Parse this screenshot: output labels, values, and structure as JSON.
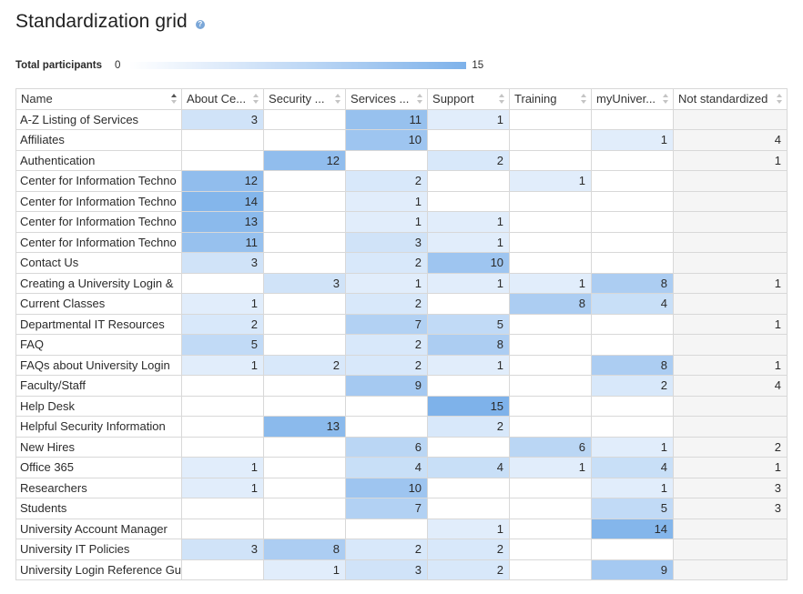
{
  "title": "Standardization grid",
  "help_icon_glyph": "?",
  "legend": {
    "label": "Total participants",
    "min": "0",
    "max": "15"
  },
  "colors": {
    "heat_low": "#ffffff",
    "heat_high": "#7eb2ea",
    "not_standardized_bg": "#f5f5f5"
  },
  "columns": [
    {
      "label": "Name",
      "full": "Name"
    },
    {
      "label": "About Ce...",
      "full": "About Center"
    },
    {
      "label": "Security ...",
      "full": "Security"
    },
    {
      "label": "Services ...",
      "full": "Services"
    },
    {
      "label": "Support",
      "full": "Support"
    },
    {
      "label": "Training",
      "full": "Training"
    },
    {
      "label": "myUniver...",
      "full": "myUniversity"
    },
    {
      "label": "Not standardized",
      "full": "Not standardized"
    }
  ],
  "rows": [
    {
      "name": "A-Z Listing of Services",
      "values": [
        3,
        null,
        11,
        1,
        null,
        null,
        null
      ]
    },
    {
      "name": "Affiliates",
      "values": [
        null,
        null,
        10,
        null,
        null,
        1,
        4
      ]
    },
    {
      "name": "Authentication",
      "values": [
        null,
        12,
        null,
        2,
        null,
        null,
        1
      ]
    },
    {
      "name": "Center for Information Techno",
      "values": [
        12,
        null,
        2,
        null,
        1,
        null,
        null
      ]
    },
    {
      "name": "Center for Information Techno",
      "values": [
        14,
        null,
        1,
        null,
        null,
        null,
        null
      ]
    },
    {
      "name": "Center for Information Techno",
      "values": [
        13,
        null,
        1,
        1,
        null,
        null,
        null
      ]
    },
    {
      "name": "Center for Information Techno",
      "values": [
        11,
        null,
        3,
        1,
        null,
        null,
        null
      ]
    },
    {
      "name": "Contact Us",
      "values": [
        3,
        null,
        2,
        10,
        null,
        null,
        null
      ]
    },
    {
      "name": "Creating a University Login &",
      "values": [
        null,
        3,
        1,
        1,
        1,
        8,
        1
      ]
    },
    {
      "name": "Current Classes",
      "values": [
        1,
        null,
        2,
        null,
        8,
        4,
        null
      ]
    },
    {
      "name": "Departmental IT Resources",
      "values": [
        2,
        null,
        7,
        5,
        null,
        null,
        1
      ]
    },
    {
      "name": "FAQ",
      "values": [
        5,
        null,
        2,
        8,
        null,
        null,
        null
      ]
    },
    {
      "name": "FAQs about University Login",
      "values": [
        1,
        2,
        2,
        1,
        null,
        8,
        1
      ]
    },
    {
      "name": "Faculty/Staff",
      "values": [
        null,
        null,
        9,
        null,
        null,
        2,
        4
      ]
    },
    {
      "name": "Help Desk",
      "values": [
        null,
        null,
        null,
        15,
        null,
        null,
        null
      ]
    },
    {
      "name": "Helpful Security Information",
      "values": [
        null,
        13,
        null,
        2,
        null,
        null,
        null
      ]
    },
    {
      "name": "New Hires",
      "values": [
        null,
        null,
        6,
        null,
        6,
        1,
        2
      ]
    },
    {
      "name": "Office 365",
      "values": [
        1,
        null,
        4,
        4,
        1,
        4,
        1
      ]
    },
    {
      "name": "Researchers",
      "values": [
        1,
        null,
        10,
        null,
        null,
        1,
        3
      ]
    },
    {
      "name": "Students",
      "values": [
        null,
        null,
        7,
        null,
        null,
        5,
        3
      ]
    },
    {
      "name": "University Account Manager",
      "values": [
        null,
        null,
        null,
        1,
        null,
        14,
        null
      ]
    },
    {
      "name": "University IT Policies",
      "values": [
        3,
        8,
        2,
        2,
        null,
        null,
        null
      ]
    },
    {
      "name": "University Login Reference Gu",
      "values": [
        null,
        1,
        3,
        2,
        null,
        9,
        null
      ]
    }
  ]
}
